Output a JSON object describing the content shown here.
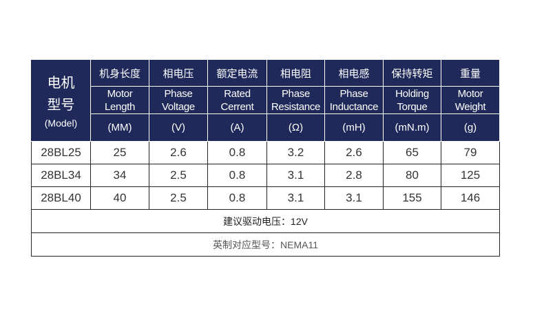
{
  "header": {
    "model_zh_line1": "电机",
    "model_zh_line2": "型号",
    "model_en": "(Model)",
    "columns": [
      {
        "zh": "机身长度",
        "en1": "Motor",
        "en2": "Length",
        "unit": "(MM)"
      },
      {
        "zh": "相电压",
        "en1": "Phase",
        "en2": "Voltage",
        "unit": "(V)"
      },
      {
        "zh": "额定电流",
        "en1": "Rated",
        "en2": "Cerrent",
        "unit": "(A)"
      },
      {
        "zh": "相电阻",
        "en1": "Phase",
        "en2": "Resistance",
        "unit": "(Ω)"
      },
      {
        "zh": "相电感",
        "en1": "Phase",
        "en2": "Inductance",
        "unit": "(mH)"
      },
      {
        "zh": "保持转矩",
        "en1": "Holding",
        "en2": "Torque",
        "unit": "(mN.m)"
      },
      {
        "zh": "重量",
        "en1": "Motor",
        "en2": "Weight",
        "unit": "(g)"
      }
    ]
  },
  "rows": [
    [
      "28BL25",
      "25",
      "2.6",
      "0.8",
      "3.2",
      "2.6",
      "65",
      "79"
    ],
    [
      "28BL34",
      "34",
      "2.5",
      "0.8",
      "3.1",
      "2.8",
      "80",
      "125"
    ],
    [
      "28BL40",
      "40",
      "2.5",
      "0.8",
      "3.1",
      "3.1",
      "155",
      "146"
    ]
  ],
  "notes": {
    "drive_voltage": "建议驱动电压：12V",
    "nema": "英制对应型号：NEMA11"
  },
  "colors": {
    "header_bg": "#1f2a5a",
    "header_text": "#ffffff",
    "border": "#222222"
  }
}
